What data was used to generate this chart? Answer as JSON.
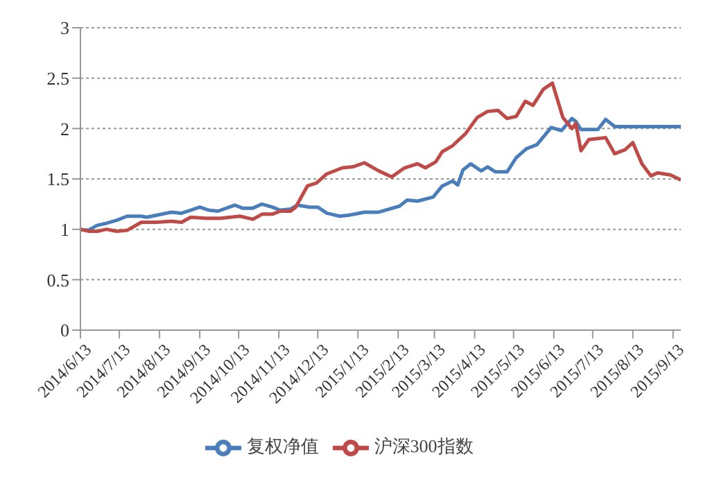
{
  "chart_data": {
    "type": "line",
    "legend": "bottom",
    "grid": "y",
    "line_style": "solid",
    "marker": "none",
    "xlim": [
      "2014-06-13",
      "2015-09-19"
    ],
    "xticks": [
      {
        "value": "2014-06-13",
        "label": "2014/6/13"
      },
      {
        "value": "2014-07-13",
        "label": "2014/7/13"
      },
      {
        "value": "2014-08-13",
        "label": "2014/8/13"
      },
      {
        "value": "2014-09-13",
        "label": "2014/9/13"
      },
      {
        "value": "2014-10-13",
        "label": "2014/10/13"
      },
      {
        "value": "2014-11-13",
        "label": "2014/11/13"
      },
      {
        "value": "2014-12-13",
        "label": "2014/12/13"
      },
      {
        "value": "2015-01-13",
        "label": "2015/1/13"
      },
      {
        "value": "2015-02-13",
        "label": "2015/2/13"
      },
      {
        "value": "2015-03-13",
        "label": "2015/3/13"
      },
      {
        "value": "2015-04-13",
        "label": "2015/4/13"
      },
      {
        "value": "2015-05-13",
        "label": "2015/5/13"
      },
      {
        "value": "2015-06-13",
        "label": "2015/6/13"
      },
      {
        "value": "2015-07-13",
        "label": "2015/7/13"
      },
      {
        "value": "2015-08-13",
        "label": "2015/8/13"
      },
      {
        "value": "2015-09-13",
        "label": "2015/9/13"
      }
    ],
    "ylim": [
      0,
      3
    ],
    "yticks": [
      0,
      0.5,
      1,
      1.5,
      2,
      2.5,
      3
    ],
    "series": [
      {
        "name": "复权净值",
        "color": "#4a7ebb",
        "x": [
          "2014-06-13",
          "2014-06-19",
          "2014-06-26",
          "2014-07-03",
          "2014-07-11",
          "2014-07-19",
          "2014-07-30",
          "2014-08-03",
          "2014-08-11",
          "2014-08-22",
          "2014-08-30",
          "2014-09-06",
          "2014-09-13",
          "2014-09-20",
          "2014-09-27",
          "2014-10-10",
          "2014-10-16",
          "2014-10-24",
          "2014-10-31",
          "2014-11-08",
          "2014-11-14",
          "2014-11-22",
          "2014-11-27",
          "2014-12-07",
          "2014-12-13",
          "2014-12-20",
          "2014-12-30",
          "2015-01-06",
          "2015-01-18",
          "2015-01-29",
          "2015-02-14",
          "2015-02-20",
          "2015-02-28",
          "2015-03-12",
          "2015-03-19",
          "2015-03-27",
          "2015-03-31",
          "2015-04-04",
          "2015-04-10",
          "2015-04-18",
          "2015-04-23",
          "2015-04-29",
          "2015-05-08",
          "2015-05-15",
          "2015-05-23",
          "2015-05-31",
          "2015-06-11",
          "2015-06-19",
          "2015-06-27",
          "2015-06-30",
          "2015-07-04",
          "2015-07-17",
          "2015-07-23",
          "2015-07-30",
          "2015-09-19"
        ],
        "values": [
          1.0,
          0.99,
          1.04,
          1.06,
          1.09,
          1.13,
          1.13,
          1.12,
          1.14,
          1.17,
          1.16,
          1.19,
          1.22,
          1.19,
          1.18,
          1.24,
          1.21,
          1.21,
          1.25,
          1.22,
          1.19,
          1.2,
          1.24,
          1.22,
          1.22,
          1.16,
          1.13,
          1.14,
          1.17,
          1.17,
          1.23,
          1.29,
          1.28,
          1.32,
          1.43,
          1.48,
          1.44,
          1.59,
          1.65,
          1.58,
          1.62,
          1.57,
          1.57,
          1.71,
          1.8,
          1.84,
          2.01,
          1.98,
          2.1,
          2.07,
          1.99,
          1.99,
          2.09,
          2.02,
          2.02
        ]
      },
      {
        "name": "沪深300指数",
        "color": "#be4b48",
        "x": [
          "2014-06-13",
          "2014-06-20",
          "2014-06-26",
          "2014-07-03",
          "2014-07-11",
          "2014-07-19",
          "2014-07-30",
          "2014-08-11",
          "2014-08-22",
          "2014-08-30",
          "2014-09-06",
          "2014-09-18",
          "2014-09-29",
          "2014-10-14",
          "2014-10-24",
          "2014-10-31",
          "2014-11-08",
          "2014-11-14",
          "2014-11-22",
          "2014-11-26",
          "2014-12-05",
          "2014-12-12",
          "2014-12-20",
          "2015-01-01",
          "2015-01-09",
          "2015-01-18",
          "2015-01-29",
          "2015-02-08",
          "2015-02-18",
          "2015-02-28",
          "2015-03-06",
          "2015-03-14",
          "2015-03-19",
          "2015-03-27",
          "2015-04-06",
          "2015-04-15",
          "2015-04-23",
          "2015-05-01",
          "2015-05-08",
          "2015-05-15",
          "2015-05-22",
          "2015-05-28",
          "2015-06-05",
          "2015-06-12",
          "2015-06-20",
          "2015-06-27",
          "2015-06-30",
          "2015-07-04",
          "2015-07-10",
          "2015-07-23",
          "2015-07-30",
          "2015-08-07",
          "2015-08-13",
          "2015-08-20",
          "2015-08-27",
          "2015-09-01",
          "2015-09-11",
          "2015-09-19"
        ],
        "values": [
          1.0,
          0.98,
          0.98,
          1.0,
          0.98,
          0.99,
          1.07,
          1.07,
          1.08,
          1.07,
          1.12,
          1.11,
          1.11,
          1.13,
          1.1,
          1.15,
          1.15,
          1.18,
          1.18,
          1.22,
          1.43,
          1.46,
          1.55,
          1.61,
          1.62,
          1.66,
          1.58,
          1.52,
          1.61,
          1.65,
          1.61,
          1.67,
          1.77,
          1.83,
          1.95,
          2.11,
          2.17,
          2.18,
          2.1,
          2.12,
          2.27,
          2.23,
          2.39,
          2.45,
          2.11,
          2.0,
          2.05,
          1.78,
          1.89,
          1.91,
          1.75,
          1.79,
          1.86,
          1.65,
          1.53,
          1.56,
          1.54,
          1.49
        ]
      }
    ]
  }
}
